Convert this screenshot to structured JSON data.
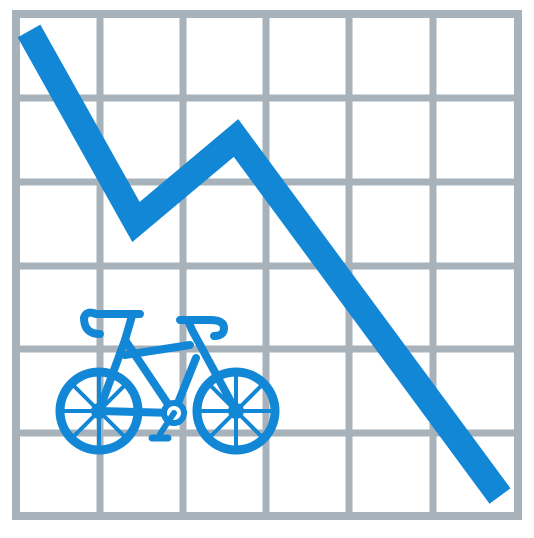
{
  "icon": {
    "name": "declining-bicycle-chart",
    "colors": {
      "background": "#ffffff",
      "grid": "#a7b2ba",
      "trend_line": "#1287d6",
      "bicycle": "#1287d6"
    }
  }
}
